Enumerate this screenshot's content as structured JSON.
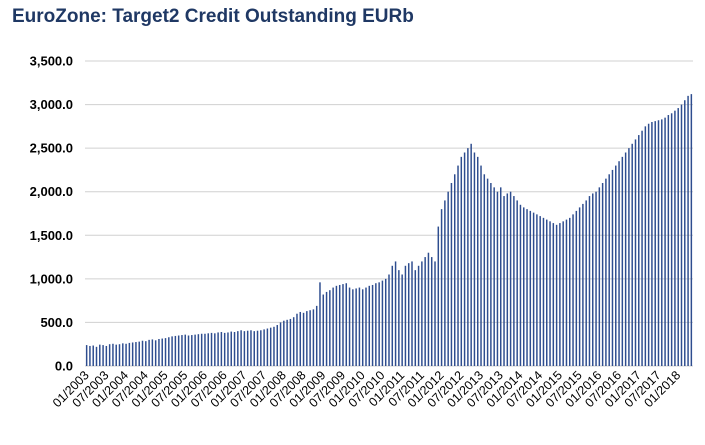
{
  "chart_data": {
    "type": "bar",
    "title": "EuroZone: Target2 Credit Outstanding EURb",
    "xlabel": "",
    "ylabel": "",
    "ylim": [
      0,
      3500
    ],
    "yticks": [
      "0.0",
      "500.0",
      "1,000.0",
      "1,500.0",
      "2,000.0",
      "2,500.0",
      "3,000.0",
      "3,500.0"
    ],
    "grid": true,
    "legend": "none",
    "bar_color": "#2e4d8f",
    "grid_color": "#d0d0d0",
    "title_color": "#1f3864",
    "xtick_labels": [
      "01/2003",
      "07/2003",
      "01/2004",
      "07/2004",
      "01/2005",
      "07/2005",
      "01/2006",
      "07/2006",
      "01/2007",
      "07/2007",
      "01/2008",
      "07/2008",
      "01/2009",
      "07/2009",
      "01/2010",
      "07/2010",
      "01/2011",
      "07/2011",
      "01/2012",
      "07/2012",
      "01/2013",
      "07/2013",
      "01/2014",
      "07/2014",
      "01/2015",
      "07/2015",
      "01/2016",
      "07/2016",
      "01/2017",
      "07/2017",
      "01/2018"
    ],
    "start_period": "01/2003",
    "values": [
      240,
      230,
      235,
      220,
      245,
      240,
      230,
      250,
      255,
      245,
      250,
      260,
      255,
      265,
      270,
      275,
      280,
      290,
      285,
      300,
      305,
      295,
      310,
      315,
      320,
      330,
      340,
      345,
      350,
      355,
      360,
      350,
      355,
      360,
      365,
      370,
      370,
      375,
      380,
      375,
      385,
      390,
      380,
      385,
      395,
      390,
      400,
      410,
      400,
      405,
      410,
      400,
      405,
      410,
      420,
      430,
      440,
      450,
      470,
      500,
      520,
      530,
      540,
      560,
      600,
      620,
      610,
      630,
      640,
      650,
      690,
      960,
      820,
      850,
      870,
      900,
      920,
      930,
      940,
      950,
      900,
      880,
      890,
      900,
      880,
      900,
      920,
      930,
      950,
      960,
      980,
      1000,
      1050,
      1150,
      1200,
      1100,
      1050,
      1150,
      1180,
      1200,
      1100,
      1150,
      1200,
      1250,
      1300,
      1250,
      1200,
      1600,
      1800,
      1900,
      2000,
      2100,
      2200,
      2300,
      2400,
      2450,
      2500,
      2550,
      2450,
      2400,
      2300,
      2200,
      2150,
      2100,
      2050,
      2000,
      2050,
      1950,
      1980,
      2000,
      1950,
      1900,
      1850,
      1820,
      1800,
      1780,
      1760,
      1740,
      1720,
      1700,
      1680,
      1660,
      1640,
      1620,
      1640,
      1660,
      1680,
      1700,
      1740,
      1780,
      1820,
      1860,
      1900,
      1950,
      1980,
      2000,
      2050,
      2100,
      2150,
      2200,
      2250,
      2300,
      2350,
      2400,
      2450,
      2500,
      2550,
      2600,
      2650,
      2700,
      2750,
      2780,
      2800,
      2810,
      2820,
      2830,
      2850,
      2880,
      2900,
      2930,
      2960,
      3000,
      3050,
      3100,
      3120
    ]
  }
}
